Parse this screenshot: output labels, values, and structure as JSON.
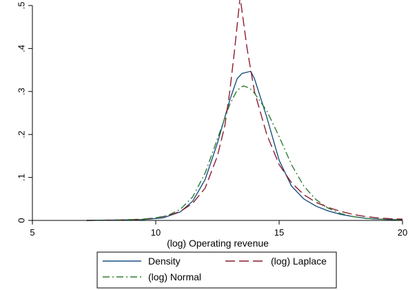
{
  "chart_data": {
    "type": "line",
    "title": "",
    "xlabel": "(log) Operating revenue",
    "ylabel": "",
    "xlim": [
      5,
      20
    ],
    "ylim": [
      0,
      0.5
    ],
    "xticks": [
      5,
      10,
      15,
      20
    ],
    "xtick_labels": [
      "5",
      "10",
      "15",
      "20"
    ],
    "yticks": [
      0,
      0.1,
      0.2,
      0.3,
      0.4,
      0.5
    ],
    "ytick_labels": [
      "0",
      ".1",
      ".2",
      ".3",
      ".4",
      ".5"
    ],
    "grid": false,
    "legend_position": "bottom",
    "series": [
      {
        "name": "Density",
        "color": "#1a4f80",
        "dash": "solid",
        "x": [
          7.2,
          8.5,
          9.5,
          10.3,
          11.0,
          11.5,
          12.0,
          12.5,
          13.0,
          13.3,
          13.5,
          13.85,
          14.0,
          14.5,
          15.0,
          15.5,
          16.0,
          16.5,
          17.0,
          17.5,
          18.0,
          18.5,
          19.0,
          19.5,
          20.0
        ],
        "y": [
          0.0,
          0.001,
          0.002,
          0.006,
          0.02,
          0.045,
          0.095,
          0.18,
          0.28,
          0.33,
          0.342,
          0.347,
          0.33,
          0.24,
          0.14,
          0.08,
          0.05,
          0.033,
          0.022,
          0.014,
          0.009,
          0.005,
          0.003,
          0.002,
          0.002
        ]
      },
      {
        "name": "(log) Laplace",
        "color": "#8b1a2b",
        "dash": "long",
        "x": [
          7.2,
          8.5,
          9.5,
          10.0,
          10.5,
          11.0,
          11.5,
          12.0,
          12.5,
          12.8,
          13.0,
          13.2,
          13.42,
          13.7,
          14.0,
          14.5,
          15.0,
          15.5,
          16.0,
          16.5,
          17.0,
          17.5,
          18.0,
          18.5,
          19.0,
          19.5,
          20.0
        ],
        "y": [
          0.0,
          0.001,
          0.003,
          0.006,
          0.011,
          0.021,
          0.04,
          0.075,
          0.15,
          0.22,
          0.3,
          0.4,
          0.52,
          0.4,
          0.3,
          0.2,
          0.13,
          0.088,
          0.06,
          0.042,
          0.03,
          0.021,
          0.014,
          0.009,
          0.006,
          0.004,
          0.003
        ]
      },
      {
        "name": "(log) Normal",
        "color": "#2e7d32",
        "dash": "dashdot",
        "x": [
          7.2,
          8.5,
          9.5,
          10.0,
          10.5,
          11.0,
          11.5,
          12.0,
          12.5,
          13.0,
          13.3,
          13.55,
          13.8,
          14.0,
          14.5,
          15.0,
          15.5,
          16.0,
          16.5,
          17.0,
          17.5,
          18.0,
          18.5,
          19.0,
          19.5,
          20.0
        ],
        "y": [
          0.0,
          0.001,
          0.003,
          0.006,
          0.012,
          0.026,
          0.055,
          0.11,
          0.19,
          0.27,
          0.303,
          0.313,
          0.308,
          0.296,
          0.255,
          0.195,
          0.13,
          0.08,
          0.048,
          0.028,
          0.016,
          0.009,
          0.005,
          0.003,
          0.002,
          0.001
        ]
      }
    ]
  }
}
